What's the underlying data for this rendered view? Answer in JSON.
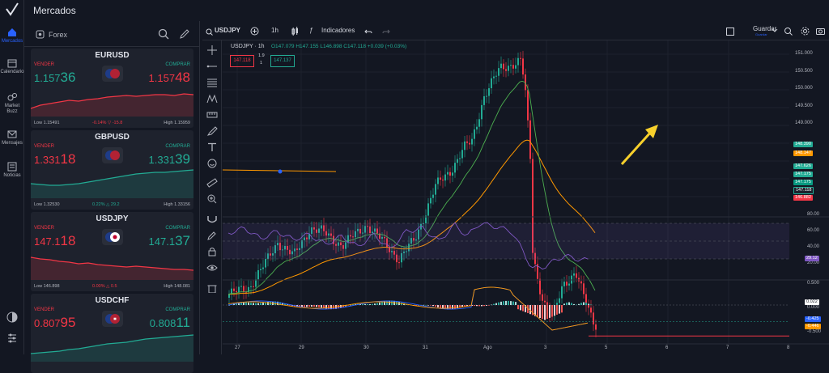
{
  "header": {
    "title": "Mercados"
  },
  "nav": {
    "items": [
      {
        "label": "Mercados",
        "icon": "home-icon",
        "active": true
      },
      {
        "label": "Calendario",
        "icon": "calendar-icon",
        "active": false
      },
      {
        "label": "Market Buzz",
        "icon": "buzz-icon",
        "active": false
      },
      {
        "label": "Mensajes",
        "icon": "mail-icon",
        "active": false
      },
      {
        "label": "Noticias",
        "icon": "news-icon",
        "active": false
      }
    ]
  },
  "markets": {
    "category": "Forex",
    "cards": [
      {
        "symbol": "EURUSD",
        "sell_label": "VENDER",
        "buy_label": "COMPRAR",
        "sell_a": "1.157",
        "sell_b": "36",
        "buy_a": "1.157",
        "buy_b": "48",
        "low": "Low 1.15491",
        "change": "-0.14%  ▽ -15.8",
        "high": "High 1.15959",
        "dir": "down"
      },
      {
        "symbol": "GBPUSD",
        "sell_label": "VENDER",
        "buy_label": "COMPRAR",
        "sell_a": "1.331",
        "sell_b": "18",
        "buy_a": "1.331",
        "buy_b": "39",
        "low": "Low 1.32530",
        "change": "0.22%  △ 29.2",
        "high": "High 1.33156",
        "dir": "up"
      },
      {
        "symbol": "USDJPY",
        "sell_label": "VENDER",
        "buy_label": "COMPRAR",
        "sell_a": "147.1",
        "sell_b": "18",
        "buy_a": "147.1",
        "buy_b": "37",
        "low": "Low 146.898",
        "change": "0.00%  △ 0.5",
        "high": "High 148.081",
        "dir": "down"
      },
      {
        "symbol": "USDCHF",
        "sell_label": "VENDER",
        "buy_label": "COMPRAR",
        "sell_a": "0.807",
        "sell_b": "95",
        "buy_a": "0.808",
        "buy_b": "11",
        "low": "",
        "change": "",
        "high": "",
        "dir": "up"
      }
    ]
  },
  "toolbar": {
    "symbol": "USDJPY",
    "interval": "1h",
    "indicators_label": "Indicadores",
    "save_label": "Guardar",
    "save_sub": "Guardar"
  },
  "legend": {
    "title": "USDJPY · 1h",
    "ohlc": "O147.079  H147.155  L146.898  C147.118  +0.039 (+0.03%)",
    "sell_box": "147.118",
    "spread_top": "1.9",
    "spread_bot": "1",
    "buy_box": "147.137"
  },
  "price_axis": [
    "151.000",
    "150.500",
    "150.000",
    "149.500",
    "149.000"
  ],
  "price_tags": [
    {
      "text": "148.390",
      "bg": "#22ab94",
      "tb": "148.390"
    },
    {
      "text": "148.147",
      "bg": "#ff9800"
    },
    {
      "text": "147.626",
      "bg": "#22ab94"
    },
    {
      "text": "147.175",
      "bg": "#22ab94"
    },
    {
      "text": "147.175",
      "bg": "#089981"
    },
    {
      "text": "147.118",
      "bg": "#1e222d"
    },
    {
      "text": "146.882",
      "bg": "#f23645"
    }
  ],
  "rsi_axis": [
    "80.00",
    "60.00",
    "40.00",
    "20.00"
  ],
  "rsi_tag": "29.12",
  "macd_axis": [
    "0.500",
    "0.000",
    "-0.500"
  ],
  "macd_tags": [
    {
      "text": "0.022",
      "bg": "#ffffff",
      "color": "#131722"
    },
    {
      "text": "-0.425",
      "bg": "#2962ff",
      "color": "#ffffff"
    },
    {
      "text": "-0.446",
      "bg": "#ff9800",
      "color": "#ffffff"
    }
  ],
  "time_axis": [
    "27",
    "29",
    "30",
    "31",
    "Ago",
    "3",
    "5",
    "6",
    "7",
    "8"
  ],
  "colors": {
    "up": "#22ab94",
    "down": "#f23645",
    "ema_orange": "#ff9800",
    "ema_green": "#4caf50",
    "arrow": "#f7d02c"
  }
}
